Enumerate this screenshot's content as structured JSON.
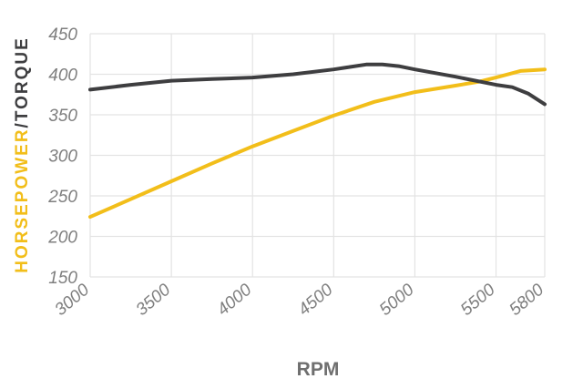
{
  "chart_data": {
    "type": "line",
    "xlabel": "RPM",
    "ylabel_parts": [
      {
        "text": "HORSEPOWER",
        "color": "#F2BE1A"
      },
      {
        "text": "/TORQUE",
        "color": "#3E3E40"
      }
    ],
    "xlim": [
      3000,
      5800
    ],
    "ylim": [
      150,
      450
    ],
    "xticks": [
      3000,
      3500,
      4000,
      4500,
      5000,
      5500,
      5800
    ],
    "yticks": [
      150,
      200,
      250,
      300,
      350,
      400,
      450
    ],
    "grid": true,
    "series": [
      {
        "color": "#F2BE1A",
        "x": [
          3000,
          3250,
          3500,
          3750,
          4000,
          4250,
          4500,
          4750,
          5000,
          5250,
          5400,
          5500,
          5650,
          5800
        ],
        "y": [
          224,
          246,
          268,
          290,
          311,
          330,
          349,
          366,
          378,
          386,
          391,
          396,
          404,
          406
        ]
      },
      {
        "color": "#3E3E40",
        "x": [
          3000,
          3250,
          3500,
          3750,
          4000,
          4250,
          4500,
          4600,
          4700,
          4800,
          4900,
          5000,
          5250,
          5500,
          5600,
          5700,
          5800
        ],
        "y": [
          381,
          387,
          392,
          394,
          396,
          400,
          406,
          409,
          412,
          412,
          410,
          406,
          397,
          387,
          384,
          376,
          363
        ]
      }
    ]
  }
}
